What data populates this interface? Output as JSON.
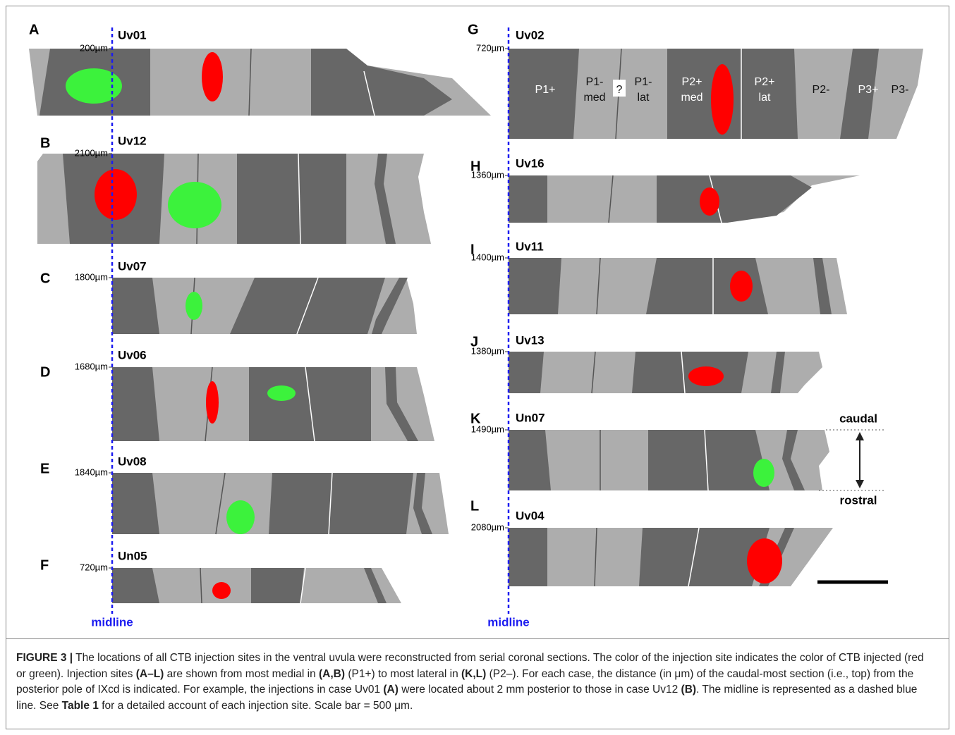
{
  "panels": [
    {
      "letter": "A",
      "case": "Uv01",
      "depth": "200µm"
    },
    {
      "letter": "B",
      "case": "Uv12",
      "depth": "2100µm"
    },
    {
      "letter": "C",
      "case": "Uv07",
      "depth": "1800µm"
    },
    {
      "letter": "D",
      "case": "Uv06",
      "depth": "1680µm"
    },
    {
      "letter": "E",
      "case": "Uv08",
      "depth": "1840µm"
    },
    {
      "letter": "F",
      "case": "Un05",
      "depth": "720µm"
    },
    {
      "letter": "G",
      "case": "Uv02",
      "depth": "720µm"
    },
    {
      "letter": "H",
      "case": "Uv16",
      "depth": "1360µm"
    },
    {
      "letter": "I",
      "case": "Uv11",
      "depth": "1400µm"
    },
    {
      "letter": "J",
      "case": "Uv13",
      "depth": "1380µm"
    },
    {
      "letter": "K",
      "case": "Un07",
      "depth": "1490µm"
    },
    {
      "letter": "L",
      "case": "Uv04",
      "depth": "2080µm"
    }
  ],
  "zone_labels": [
    [
      "P1+"
    ],
    [
      "P1-",
      "med"
    ],
    [
      "?"
    ],
    [
      "P1-",
      "lat"
    ],
    [
      "P2+",
      "med"
    ],
    [
      "P2+",
      "lat"
    ],
    [
      "P2-"
    ],
    [
      "P3+"
    ],
    [
      "P3-"
    ]
  ],
  "midline_labels": [
    "midline",
    "midline"
  ],
  "orientation": {
    "top": "caudal",
    "bottom": "rostral"
  },
  "caption": [
    {
      "text": "FIGURE 3 |",
      "bold": true
    },
    {
      "text": " The locations of all CTB injection sites in the ventral uvula were reconstructed from serial coronal sections. The color of the injection site indicates the color of CTB injected (red or green). Injection sites ",
      "bold": false
    },
    {
      "text": "(A–L)",
      "bold": true
    },
    {
      "text": " are shown from most medial in ",
      "bold": false
    },
    {
      "text": "(A,B)",
      "bold": true
    },
    {
      "text": " (P1+) to most lateral in ",
      "bold": false
    },
    {
      "text": "(K,L)",
      "bold": true
    },
    {
      "text": " (P2–). For each case, the distance (in μm) of the caudal-most section (i.e., top) from the posterior pole of IXcd is indicated. For example, the injections in case Uv01 ",
      "bold": false
    },
    {
      "text": "(A)",
      "bold": true
    },
    {
      "text": " were located about 2 mm posterior to those in case Uv12 ",
      "bold": false
    },
    {
      "text": "(B)",
      "bold": true
    },
    {
      "text": ". The midline is represented as a dashed blue line. See ",
      "bold": false
    },
    {
      "text": "Table 1",
      "bold": true
    },
    {
      "text": " for a detailed account of each injection site. Scale bar = 500 μm.",
      "bold": false
    }
  ]
}
